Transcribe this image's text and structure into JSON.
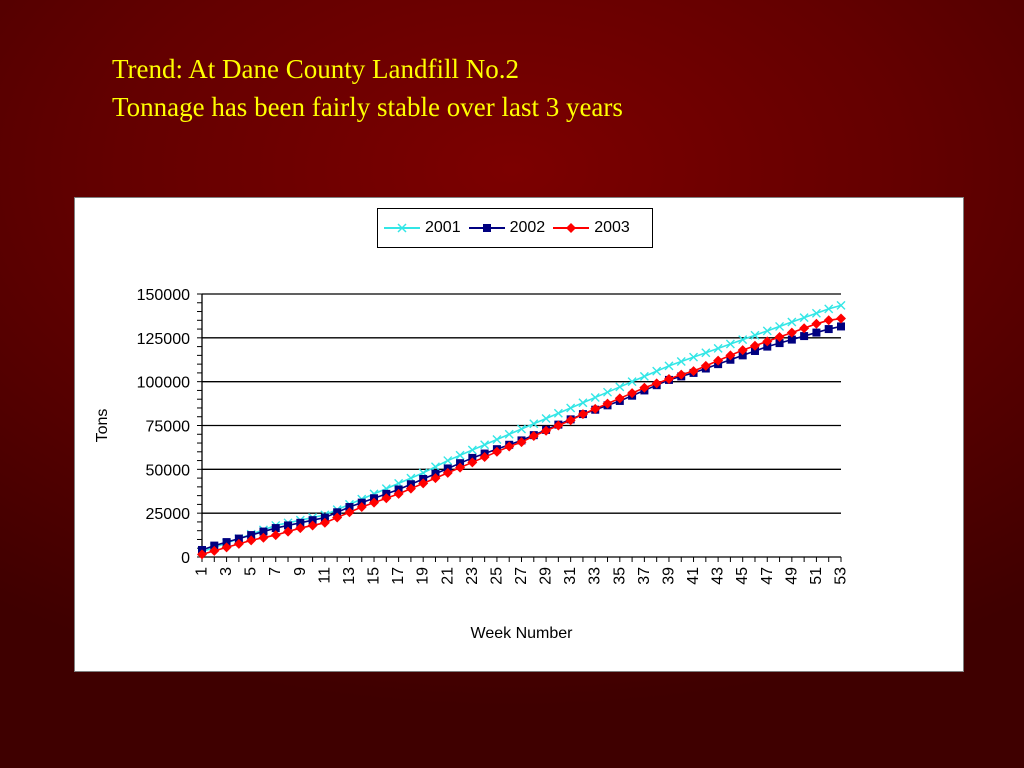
{
  "slide": {
    "title_line1": "Trend: At Dane County Landfill No.2",
    "title_line2": "Tonnage has been fairly stable over last 3 years"
  },
  "colors": {
    "title": "#ffff00",
    "series_2001": "#33e6e6",
    "series_2002": "#000080",
    "series_2003": "#ff0000"
  },
  "chart_data": {
    "type": "line",
    "title": "",
    "xlabel": "Week Number",
    "ylabel": "Tons",
    "ylim": [
      0,
      150000
    ],
    "yticks": [
      0,
      25000,
      50000,
      75000,
      100000,
      125000,
      150000
    ],
    "xtick_labels": [
      "1",
      "3",
      "5",
      "7",
      "9",
      "11",
      "13",
      "15",
      "17",
      "19",
      "21",
      "23",
      "25",
      "27",
      "29",
      "31",
      "33",
      "35",
      "37",
      "39",
      "41",
      "43",
      "45",
      "47",
      "49",
      "51",
      "53"
    ],
    "x": [
      1,
      2,
      3,
      4,
      5,
      6,
      7,
      8,
      9,
      10,
      11,
      12,
      13,
      14,
      15,
      16,
      17,
      18,
      19,
      20,
      21,
      22,
      23,
      24,
      25,
      26,
      27,
      28,
      29,
      30,
      31,
      32,
      33,
      34,
      35,
      36,
      37,
      38,
      39,
      40,
      41,
      42,
      43,
      44,
      45,
      46,
      47,
      48,
      49,
      50,
      51,
      52,
      53
    ],
    "grid": "horizontal",
    "legend_position": "top-center",
    "series": [
      {
        "name": "2001",
        "marker": "x",
        "values": [
          3000,
          5500,
          8000,
          10500,
          13000,
          15500,
          18000,
          19500,
          21000,
          22500,
          24000,
          27000,
          30000,
          33000,
          36000,
          39000,
          42000,
          45000,
          48000,
          51500,
          55000,
          58000,
          61000,
          64000,
          67000,
          70000,
          73000,
          76000,
          79000,
          82000,
          85000,
          88000,
          91000,
          94000,
          97000,
          100000,
          103000,
          106000,
          109000,
          111500,
          114000,
          116500,
          119000,
          121500,
          124000,
          126500,
          129000,
          131500,
          134000,
          136500,
          139000,
          141500,
          143500
        ]
      },
      {
        "name": "2002",
        "marker": "square",
        "values": [
          4000,
          6500,
          8500,
          10500,
          12500,
          14500,
          16500,
          18000,
          19500,
          21000,
          22500,
          25500,
          28500,
          31000,
          33500,
          36000,
          38500,
          41500,
          44500,
          47500,
          50500,
          53500,
          56500,
          59000,
          61500,
          64000,
          66500,
          69500,
          72500,
          75500,
          78500,
          81500,
          84000,
          86500,
          89000,
          92000,
          95000,
          98000,
          101000,
          103000,
          105000,
          107500,
          110000,
          112500,
          115000,
          117500,
          120000,
          122000,
          124000,
          126000,
          128000,
          130000,
          131500
        ]
      },
      {
        "name": "2003",
        "marker": "diamond",
        "values": [
          1500,
          3500,
          5500,
          7500,
          9500,
          11000,
          12500,
          14500,
          16500,
          18000,
          19500,
          22500,
          25500,
          28500,
          31000,
          33500,
          36000,
          39000,
          42000,
          45000,
          48000,
          51000,
          54000,
          57000,
          60000,
          63000,
          65500,
          69000,
          72000,
          75000,
          78000,
          81500,
          84500,
          87500,
          90500,
          93500,
          96500,
          99000,
          101500,
          104000,
          106000,
          109000,
          112000,
          115000,
          118000,
          120500,
          123000,
          125500,
          128000,
          130500,
          133000,
          135000,
          136000
        ]
      }
    ]
  }
}
